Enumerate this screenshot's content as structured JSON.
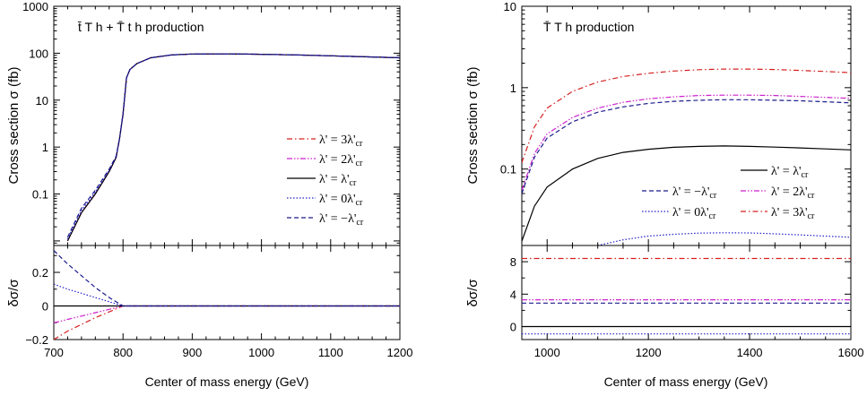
{
  "figure": {
    "xlabel_left": "Center of mass energy (GeV)",
    "xlabel_right": "Center of mass energy (GeV)",
    "ylabel_top": "Cross section  σ  (fb)",
    "ylabel_bottom": "δσ/σ"
  },
  "chart_data": [
    {
      "panel": "left-top",
      "type": "line",
      "title": "t̄ T h + T̄ t h production",
      "xlabel": "",
      "ylabel": "Cross section  σ  (fb)",
      "xlim": [
        700,
        1200
      ],
      "ylim": [
        0.008,
        1000
      ],
      "yscale": "log",
      "ytick_labels": [
        "1000",
        "100",
        "10",
        "1",
        "0.1"
      ],
      "legend_position": "center-right",
      "series": [
        {
          "name": "λ' = 3λ'cr",
          "style": "dash-dot",
          "color": "#d62020",
          "x": [
            720,
            740,
            760,
            780,
            790,
            795,
            800,
            805,
            810,
            820,
            840,
            870,
            900,
            950,
            1000,
            1050,
            1100,
            1150,
            1200
          ],
          "y": [
            0.01,
            0.04,
            0.1,
            0.3,
            0.6,
            1.5,
            5,
            30,
            45,
            60,
            80,
            92,
            96,
            97,
            95,
            92,
            88,
            84,
            80
          ]
        },
        {
          "name": "λ' = 2λ'cr",
          "style": "dash-dot-dot",
          "color": "#cc22cc",
          "x": [
            720,
            740,
            760,
            780,
            790,
            795,
            800,
            805,
            810,
            820,
            840,
            870,
            900,
            950,
            1000,
            1050,
            1100,
            1150,
            1200
          ],
          "y": [
            0.01,
            0.04,
            0.1,
            0.3,
            0.6,
            1.5,
            5,
            30,
            45,
            60,
            80,
            92,
            96,
            97,
            95,
            92,
            88,
            84,
            80
          ]
        },
        {
          "name": "λ' =  λ'cr",
          "style": "solid",
          "color": "#000000",
          "x": [
            720,
            740,
            760,
            780,
            790,
            795,
            800,
            805,
            810,
            820,
            840,
            870,
            900,
            950,
            1000,
            1050,
            1100,
            1150,
            1200
          ],
          "y": [
            0.01,
            0.04,
            0.1,
            0.3,
            0.6,
            1.5,
            5,
            30,
            45,
            60,
            80,
            92,
            96,
            97,
            95,
            92,
            88,
            84,
            80
          ]
        },
        {
          "name": "λ' = 0λ'cr",
          "style": "dotted",
          "color": "#2222cc",
          "x": [
            720,
            740,
            760,
            780,
            790,
            795,
            800,
            805,
            810,
            820,
            840,
            870,
            900,
            950,
            1000,
            1050,
            1100,
            1150,
            1200
          ],
          "y": [
            0.011,
            0.045,
            0.11,
            0.32,
            0.62,
            1.5,
            5,
            30,
            45,
            60,
            80,
            92,
            96,
            97,
            95,
            92,
            88,
            84,
            80
          ]
        },
        {
          "name": "λ' = −λ'cr",
          "style": "dashed",
          "color": "#1a1a8c",
          "x": [
            720,
            740,
            760,
            780,
            790,
            795,
            800,
            805,
            810,
            820,
            840,
            870,
            900,
            950,
            1000,
            1050,
            1100,
            1150,
            1200
          ],
          "y": [
            0.012,
            0.05,
            0.12,
            0.34,
            0.64,
            1.5,
            5,
            30,
            45,
            60,
            80,
            92,
            96,
            97,
            95,
            92,
            88,
            84,
            80
          ]
        }
      ]
    },
    {
      "panel": "left-bottom",
      "type": "line",
      "xlabel": "Center of mass energy (GeV)",
      "ylabel": "δσ/σ",
      "xlim": [
        700,
        1200
      ],
      "ylim": [
        -0.2,
        0.36
      ],
      "xtick_labels": [
        "700",
        "800",
        "900",
        "1000",
        "1100",
        "1200"
      ],
      "ytick_labels": [
        "0.2",
        "0",
        "−0.2"
      ],
      "series": [
        {
          "style": "dash-dot",
          "color": "#d62020",
          "x": [
            700,
            720,
            740,
            760,
            780,
            800,
            1200
          ],
          "y": [
            -0.2,
            -0.15,
            -0.11,
            -0.07,
            -0.035,
            0,
            0
          ]
        },
        {
          "style": "dash-dot-dot",
          "color": "#cc22cc",
          "x": [
            700,
            720,
            740,
            760,
            780,
            800,
            1200
          ],
          "y": [
            -0.1,
            -0.08,
            -0.06,
            -0.04,
            -0.02,
            0,
            0
          ]
        },
        {
          "style": "solid",
          "color": "#000000",
          "x": [
            700,
            1200
          ],
          "y": [
            0,
            0
          ]
        },
        {
          "style": "dotted",
          "color": "#2222cc",
          "x": [
            700,
            720,
            740,
            760,
            780,
            800,
            1200
          ],
          "y": [
            0.13,
            0.1,
            0.075,
            0.05,
            0.025,
            0,
            0
          ]
        },
        {
          "style": "dashed",
          "color": "#1a1a8c",
          "x": [
            700,
            720,
            740,
            760,
            780,
            800,
            1200
          ],
          "y": [
            0.33,
            0.25,
            0.18,
            0.11,
            0.05,
            0,
            0
          ]
        }
      ]
    },
    {
      "panel": "right-top",
      "type": "line",
      "title": "T̄ T h production",
      "xlabel": "",
      "ylabel": "Cross section  σ  (fb)",
      "xlim": [
        950,
        1600
      ],
      "ylim": [
        0.0115,
        10
      ],
      "yscale": "log",
      "ytick_labels": [
        "10",
        "1",
        "0.1"
      ],
      "legend_position": "bottom-right",
      "series": [
        {
          "name": "λ' =  λ'cr",
          "style": "solid",
          "color": "#000000",
          "x": [
            950,
            975,
            1000,
            1050,
            1100,
            1150,
            1200,
            1250,
            1300,
            1350,
            1400,
            1450,
            1500,
            1550,
            1600
          ],
          "y": [
            0.013,
            0.035,
            0.06,
            0.1,
            0.135,
            0.16,
            0.175,
            0.185,
            0.19,
            0.192,
            0.19,
            0.186,
            0.182,
            0.177,
            0.172
          ]
        },
        {
          "name": "λ' = −λ'cr",
          "style": "dashed",
          "color": "#1a1a8c",
          "x": [
            950,
            975,
            1000,
            1050,
            1100,
            1150,
            1200,
            1250,
            1300,
            1350,
            1400,
            1450,
            1500,
            1550,
            1600
          ],
          "y": [
            0.05,
            0.14,
            0.24,
            0.38,
            0.5,
            0.58,
            0.64,
            0.68,
            0.7,
            0.71,
            0.71,
            0.7,
            0.69,
            0.67,
            0.65
          ]
        },
        {
          "name": "λ' = 2λ'cr",
          "style": "dash-dot-dot",
          "color": "#cc22cc",
          "x": [
            950,
            975,
            1000,
            1050,
            1100,
            1150,
            1200,
            1250,
            1300,
            1350,
            1400,
            1450,
            1500,
            1550,
            1600
          ],
          "y": [
            0.055,
            0.155,
            0.27,
            0.43,
            0.56,
            0.66,
            0.73,
            0.77,
            0.8,
            0.81,
            0.81,
            0.8,
            0.78,
            0.76,
            0.74
          ]
        },
        {
          "name": "λ' = 0λ'cr",
          "style": "dotted",
          "color": "#2222cc",
          "x": [
            1100,
            1150,
            1200,
            1250,
            1300,
            1350,
            1400,
            1450,
            1500,
            1550,
            1600
          ],
          "y": [
            0.0115,
            0.0135,
            0.015,
            0.0158,
            0.0163,
            0.0165,
            0.0164,
            0.016,
            0.0155,
            0.015,
            0.0145
          ]
        },
        {
          "name": "λ' = 3λ'cr",
          "style": "dash-dot",
          "color": "#d62020",
          "x": [
            950,
            975,
            1000,
            1050,
            1100,
            1150,
            1200,
            1250,
            1300,
            1350,
            1400,
            1450,
            1500,
            1550,
            1600
          ],
          "y": [
            0.12,
            0.33,
            0.56,
            0.9,
            1.17,
            1.37,
            1.5,
            1.6,
            1.66,
            1.69,
            1.69,
            1.67,
            1.63,
            1.58,
            1.53
          ]
        }
      ]
    },
    {
      "panel": "right-bottom",
      "type": "line",
      "xlabel": "Center of mass energy (GeV)",
      "ylabel": "δσ/σ",
      "xlim": [
        950,
        1600
      ],
      "ylim": [
        -1.6,
        10
      ],
      "xtick_labels": [
        "1000",
        "1200",
        "1400",
        "1600"
      ],
      "ytick_labels": [
        "8",
        "4",
        "0"
      ],
      "series": [
        {
          "style": "dash-dot",
          "color": "#d62020",
          "x": [
            950,
            1600
          ],
          "y": [
            8.4,
            8.4
          ]
        },
        {
          "style": "dash-dot-dot",
          "color": "#cc22cc",
          "x": [
            950,
            1600
          ],
          "y": [
            3.3,
            3.3
          ]
        },
        {
          "style": "dashed",
          "color": "#1a1a8c",
          "x": [
            950,
            1600
          ],
          "y": [
            2.9,
            2.9
          ]
        },
        {
          "style": "solid",
          "color": "#000000",
          "x": [
            950,
            1600
          ],
          "y": [
            0,
            0
          ]
        },
        {
          "style": "dotted",
          "color": "#2222cc",
          "x": [
            950,
            1600
          ],
          "y": [
            -0.9,
            -0.9
          ]
        }
      ]
    }
  ]
}
